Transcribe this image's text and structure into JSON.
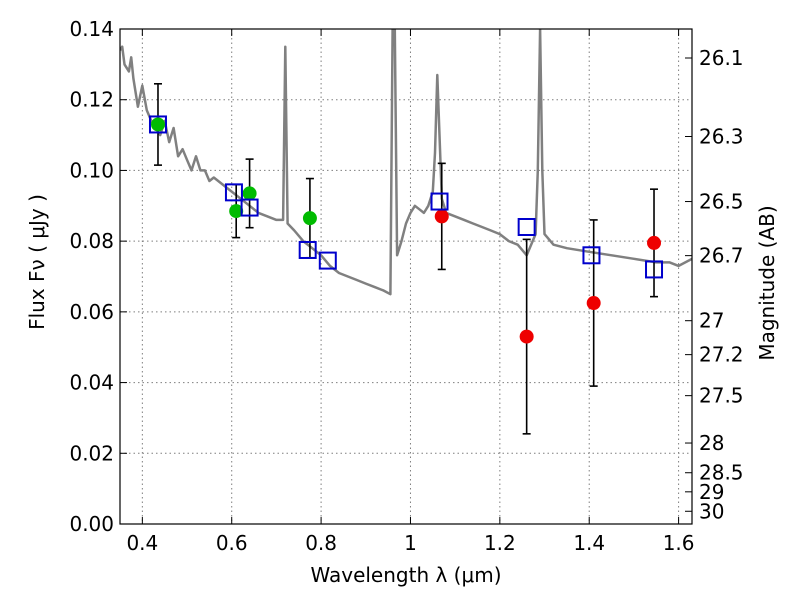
{
  "chart_data": {
    "type": "scatter",
    "xlabel": "Wavelength  λ (μm)",
    "ylabel": "Flux  Fν  ( μJy )",
    "y2label": "Magnitude (AB)",
    "xlim": [
      0.35,
      1.63
    ],
    "ylim": [
      0.0,
      0.14
    ],
    "grid": true,
    "x_ticks": [
      0.4,
      0.6,
      0.8,
      1.0,
      1.2,
      1.4,
      1.6
    ],
    "x_tick_labels": [
      "0.4",
      "0.6",
      "0.8",
      "1",
      "1.2",
      "1.4",
      "1.6"
    ],
    "y_ticks": [
      0.0,
      0.02,
      0.04,
      0.06,
      0.08,
      0.1,
      0.12,
      0.14
    ],
    "y_tick_labels": [
      "0.00",
      "0.02",
      "0.04",
      "0.06",
      "0.08",
      "0.10",
      "0.12",
      "0.14"
    ],
    "y2_ticks": [
      {
        "label": "26.1",
        "flux": 0.1318
      },
      {
        "label": "26.3",
        "flux": 0.1096
      },
      {
        "label": "26.5",
        "flux": 0.0912
      },
      {
        "label": "26.7",
        "flux": 0.0759
      },
      {
        "label": "27",
        "flux": 0.0575
      },
      {
        "label": "27.2",
        "flux": 0.0479
      },
      {
        "label": "27.5",
        "flux": 0.0363
      },
      {
        "label": "28",
        "flux": 0.0229
      },
      {
        "label": "28.5",
        "flux": 0.0145
      },
      {
        "label": "29",
        "flux": 0.0091
      },
      {
        "label": "30",
        "flux": 0.0036
      }
    ],
    "series": [
      {
        "kind": "line",
        "color": "#808080",
        "x": [
          0.35,
          0.355,
          0.36,
          0.37,
          0.375,
          0.38,
          0.39,
          0.4,
          0.41,
          0.42,
          0.43,
          0.44,
          0.45,
          0.46,
          0.47,
          0.48,
          0.49,
          0.5,
          0.51,
          0.52,
          0.53,
          0.54,
          0.55,
          0.56,
          0.58,
          0.6,
          0.62,
          0.64,
          0.66,
          0.68,
          0.7,
          0.715,
          0.72,
          0.725,
          0.74,
          0.76,
          0.78,
          0.8,
          0.82,
          0.84,
          0.86,
          0.88,
          0.9,
          0.92,
          0.94,
          0.955,
          0.96,
          0.965,
          0.97,
          0.98,
          0.99,
          1.0,
          1.01,
          1.02,
          1.03,
          1.04,
          1.05,
          1.055,
          1.06,
          1.065,
          1.07,
          1.08,
          1.1,
          1.12,
          1.14,
          1.16,
          1.18,
          1.2,
          1.22,
          1.24,
          1.26,
          1.28,
          1.285,
          1.29,
          1.295,
          1.3,
          1.32,
          1.35,
          1.4,
          1.45,
          1.5,
          1.55,
          1.58,
          1.6,
          1.63
        ],
        "y": [
          0.134,
          0.135,
          0.13,
          0.128,
          0.132,
          0.126,
          0.118,
          0.124,
          0.117,
          0.114,
          0.112,
          0.11,
          0.114,
          0.108,
          0.112,
          0.104,
          0.106,
          0.103,
          0.1,
          0.104,
          0.1,
          0.1,
          0.097,
          0.098,
          0.096,
          0.094,
          0.092,
          0.09,
          0.088,
          0.087,
          0.086,
          0.086,
          0.135,
          0.085,
          0.083,
          0.08,
          0.078,
          0.076,
          0.073,
          0.071,
          0.07,
          0.069,
          0.068,
          0.067,
          0.066,
          0.065,
          0.14,
          0.14,
          0.076,
          0.08,
          0.085,
          0.088,
          0.09,
          0.089,
          0.088,
          0.09,
          0.094,
          0.105,
          0.127,
          0.11,
          0.092,
          0.088,
          0.087,
          0.086,
          0.085,
          0.084,
          0.083,
          0.082,
          0.08,
          0.079,
          0.076,
          0.082,
          0.1,
          0.14,
          0.1,
          0.082,
          0.079,
          0.078,
          0.077,
          0.076,
          0.075,
          0.074,
          0.074,
          0.073,
          0.075
        ]
      },
      {
        "kind": "errorbars",
        "color": "#000000",
        "x": [
          0.435,
          0.61,
          0.64,
          0.775,
          1.07,
          1.26,
          1.41,
          1.545
        ],
        "y": [
          0.113,
          0.0885,
          0.0935,
          0.0865,
          0.087,
          0.053,
          0.0625,
          0.0795
        ],
        "yerr": [
          0.0115,
          0.0075,
          0.0097,
          0.0112,
          0.015,
          0.0275,
          0.0235,
          0.0152
        ]
      },
      {
        "kind": "points",
        "marker": "circle",
        "color": "#00bb00",
        "x": [
          0.435,
          0.61,
          0.64,
          0.775
        ],
        "y": [
          0.113,
          0.0885,
          0.0935,
          0.0865
        ]
      },
      {
        "kind": "points",
        "marker": "circle",
        "color": "#ee0000",
        "x": [
          1.07,
          1.26,
          1.41,
          1.545
        ],
        "y": [
          0.087,
          0.053,
          0.0625,
          0.0795
        ]
      },
      {
        "kind": "points",
        "marker": "square",
        "color": "#0000cc",
        "x": [
          0.435,
          0.605,
          0.64,
          0.77,
          0.815,
          1.065,
          1.26,
          1.405,
          1.545
        ],
        "y": [
          0.113,
          0.0938,
          0.0895,
          0.0775,
          0.0745,
          0.0912,
          0.084,
          0.076,
          0.072
        ]
      }
    ]
  }
}
